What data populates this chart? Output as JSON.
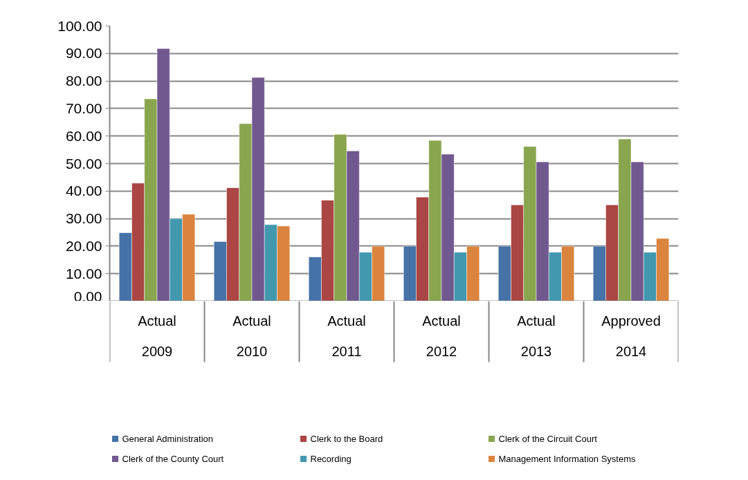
{
  "chart_data": {
    "type": "bar",
    "categories": [
      "Actual\n2009",
      "Actual\n2010",
      "Actual\n2011",
      "Actual\n2012",
      "Actual\n2013",
      "Approved\n2014"
    ],
    "series": [
      {
        "name": "General Administration",
        "color": "#4572a7",
        "values": [
          24.9,
          21.7,
          16.1,
          20.0,
          20.0,
          20.0
        ]
      },
      {
        "name": "Clerk to the Board",
        "color": "#aa4643",
        "values": [
          42.9,
          41.2,
          36.7,
          37.8,
          35.0,
          35.0
        ]
      },
      {
        "name": "Clerk of the Circuit Court",
        "color": "#89a54e",
        "values": [
          73.5,
          64.5,
          60.6,
          58.4,
          56.2,
          58.9
        ]
      },
      {
        "name": "Clerk of the County Court",
        "color": "#71588f",
        "values": [
          91.8,
          81.3,
          54.6,
          53.4,
          50.6,
          50.6
        ]
      },
      {
        "name": "Recording",
        "color": "#4198af",
        "values": [
          30.0,
          27.8,
          17.8,
          17.8,
          17.8,
          17.8
        ]
      },
      {
        "name": "Management Information Systems",
        "color": "#db843d",
        "values": [
          31.6,
          27.3,
          20.0,
          20.0,
          20.0,
          22.8
        ]
      }
    ],
    "ylim": [
      0,
      100
    ],
    "yticks": [
      {
        "value": 0,
        "label": "0.00"
      },
      {
        "value": 10,
        "label": "10.00"
      },
      {
        "value": 20,
        "label": "20.00"
      },
      {
        "value": 30,
        "label": "30.00"
      },
      {
        "value": 40,
        "label": "40.00"
      },
      {
        "value": 50,
        "label": "50.00"
      },
      {
        "value": 60,
        "label": "60.00"
      },
      {
        "value": 70,
        "label": "70.00"
      },
      {
        "value": 80,
        "label": "80.00"
      },
      {
        "value": 90,
        "label": "90.00"
      },
      {
        "value": 100,
        "label": "100.00"
      }
    ],
    "grid": "y",
    "legend": "bottom"
  }
}
